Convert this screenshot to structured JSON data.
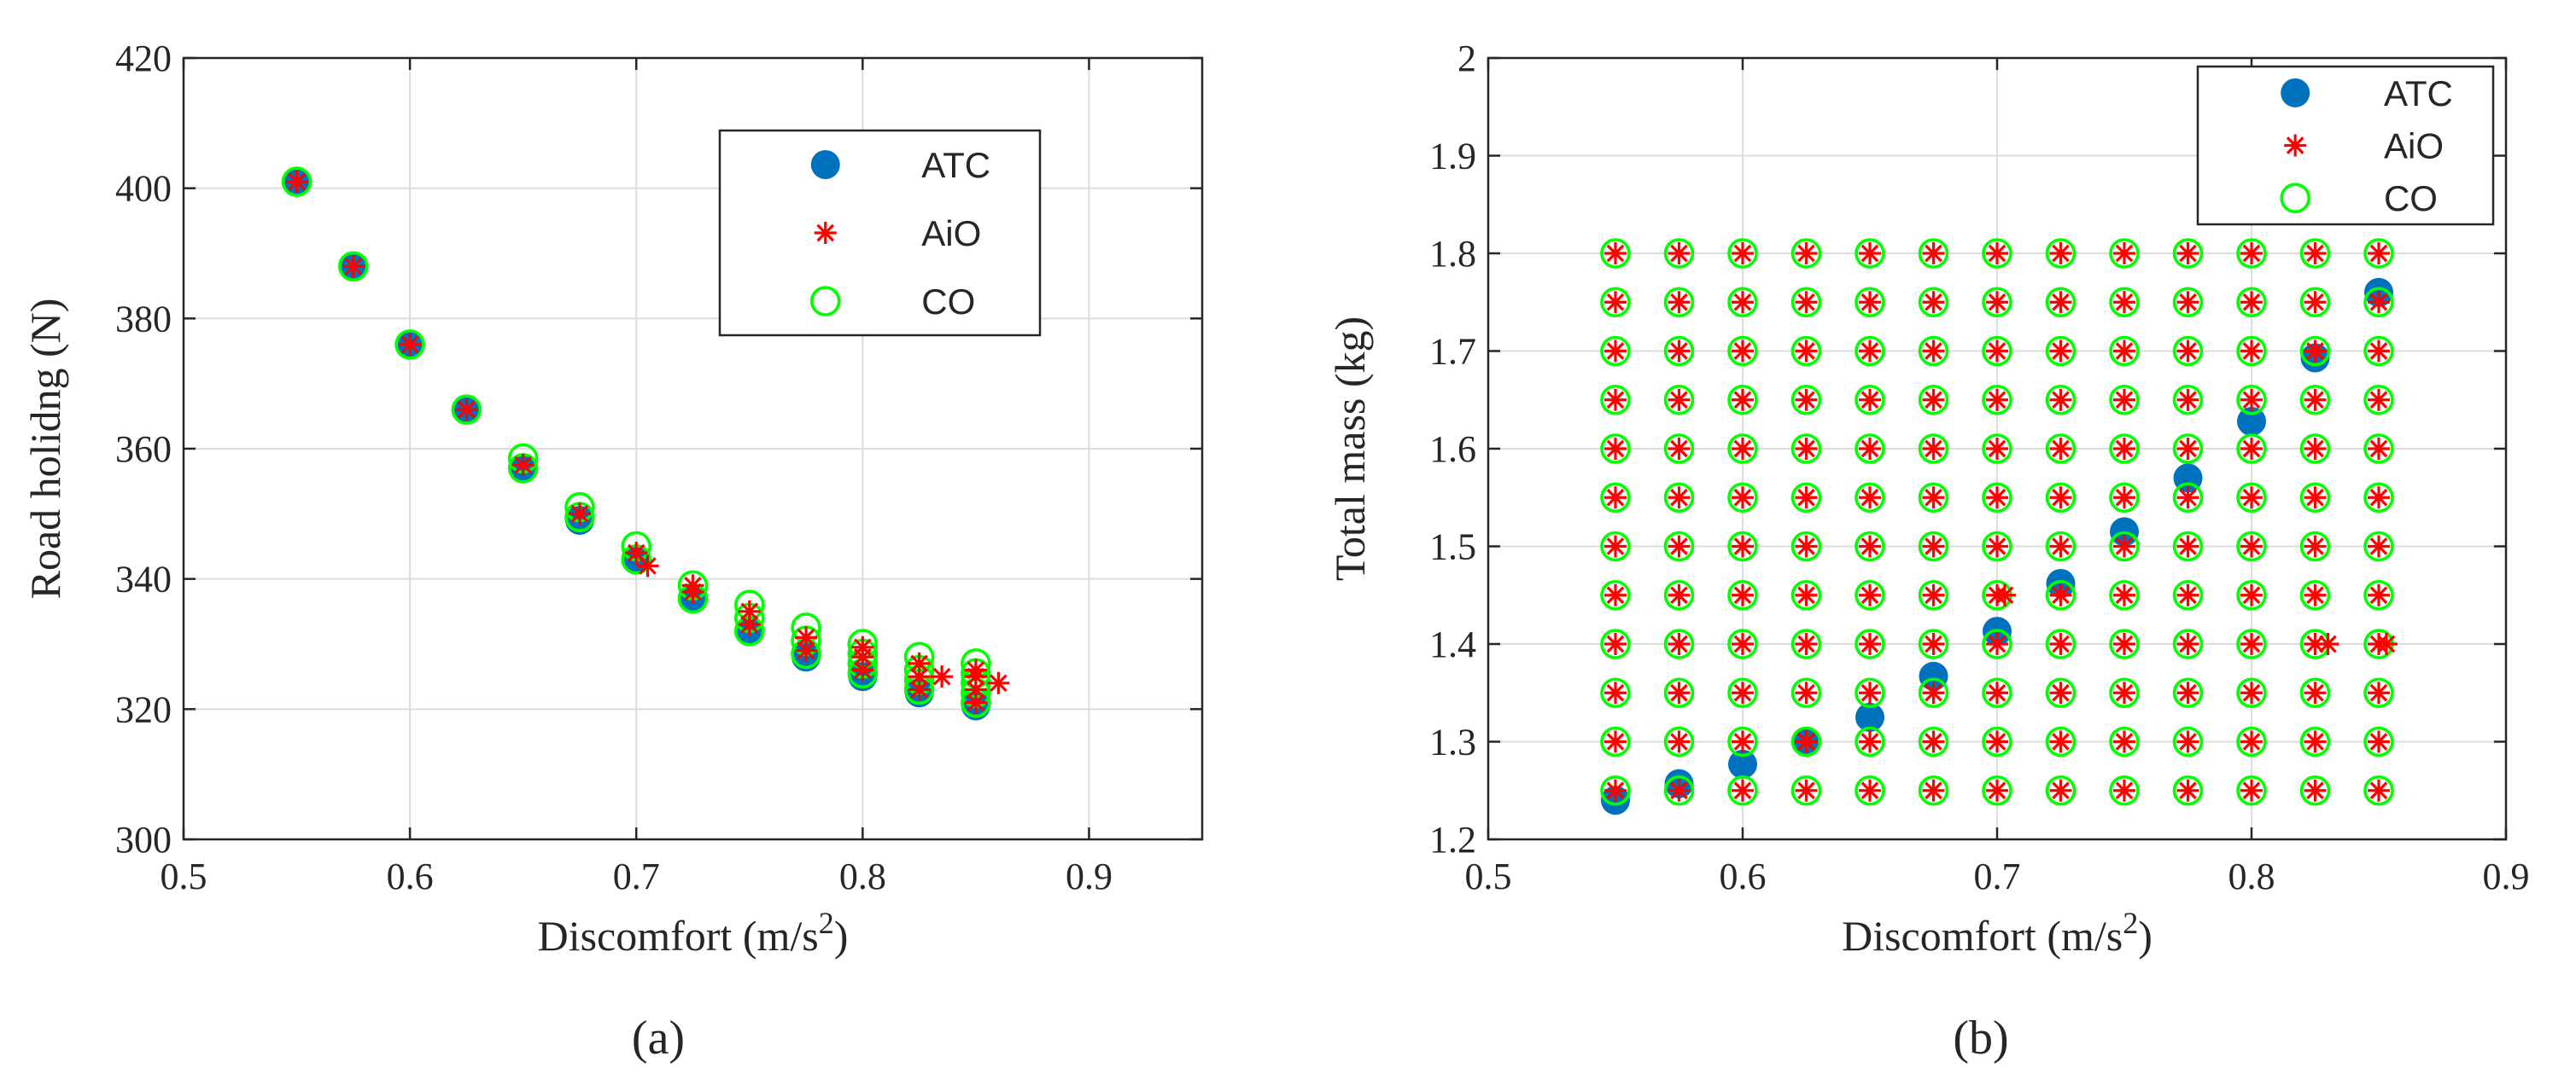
{
  "chart_data": [
    {
      "type": "scatter",
      "panel_label": "(a)",
      "xlabel": "Discomfort (m/s2)",
      "ylabel": "Road holidng (N)",
      "xlim": [
        0.5,
        0.95
      ],
      "ylim": [
        300,
        420
      ],
      "xticks": [
        0.5,
        0.6,
        0.7,
        0.8,
        0.9
      ],
      "yticks": [
        300,
        320,
        340,
        360,
        380,
        400,
        420
      ],
      "grid": true,
      "legend_position": "top-right",
      "series": [
        {
          "name": "ATC",
          "marker": "filled-circle",
          "color": "#0072BD",
          "points": [
            [
              0.55,
              401
            ],
            [
              0.575,
              388
            ],
            [
              0.6,
              376
            ],
            [
              0.625,
              366
            ],
            [
              0.65,
              357
            ],
            [
              0.675,
              349
            ],
            [
              0.7,
              343
            ],
            [
              0.725,
              337
            ],
            [
              0.75,
              332
            ],
            [
              0.775,
              328
            ],
            [
              0.8,
              325
            ],
            [
              0.825,
              322.5
            ],
            [
              0.85,
              320.5
            ]
          ]
        },
        {
          "name": "AiO",
          "marker": "asterisk",
          "color": "#FF0000",
          "points": [
            [
              0.55,
              401
            ],
            [
              0.575,
              388
            ],
            [
              0.6,
              376
            ],
            [
              0.625,
              366
            ],
            [
              0.65,
              357.5
            ],
            [
              0.675,
              350
            ],
            [
              0.7,
              344
            ],
            [
              0.705,
              342
            ],
            [
              0.725,
              338
            ],
            [
              0.725,
              339
            ],
            [
              0.75,
              333
            ],
            [
              0.75,
              335
            ],
            [
              0.775,
              329
            ],
            [
              0.775,
              331
            ],
            [
              0.8,
              326
            ],
            [
              0.8,
              328
            ],
            [
              0.8,
              329.5
            ],
            [
              0.825,
              323
            ],
            [
              0.825,
              325
            ],
            [
              0.825,
              327
            ],
            [
              0.835,
              325
            ],
            [
              0.85,
              321
            ],
            [
              0.85,
              323
            ],
            [
              0.85,
              325
            ],
            [
              0.85,
              326
            ],
            [
              0.86,
              324
            ]
          ]
        },
        {
          "name": "CO",
          "marker": "open-circle",
          "color": "#00FF00",
          "points": [
            [
              0.55,
              401
            ],
            [
              0.575,
              388
            ],
            [
              0.6,
              376
            ],
            [
              0.625,
              366
            ],
            [
              0.65,
              357
            ],
            [
              0.65,
              358.5
            ],
            [
              0.675,
              349.5
            ],
            [
              0.675,
              351
            ],
            [
              0.7,
              343
            ],
            [
              0.7,
              345
            ],
            [
              0.725,
              337
            ],
            [
              0.725,
              339
            ],
            [
              0.75,
              332
            ],
            [
              0.75,
              334
            ],
            [
              0.75,
              336
            ],
            [
              0.775,
              328.5
            ],
            [
              0.775,
              330.5
            ],
            [
              0.775,
              332.5
            ],
            [
              0.8,
              325.5
            ],
            [
              0.8,
              327
            ],
            [
              0.8,
              328.5
            ],
            [
              0.8,
              330
            ],
            [
              0.825,
              323
            ],
            [
              0.825,
              324.5
            ],
            [
              0.825,
              326
            ],
            [
              0.825,
              328
            ],
            [
              0.85,
              321
            ],
            [
              0.85,
              322.5
            ],
            [
              0.85,
              324
            ],
            [
              0.85,
              325.5
            ],
            [
              0.85,
              327
            ]
          ]
        }
      ]
    },
    {
      "type": "scatter",
      "panel_label": "(b)",
      "xlabel": "Discomfort (m/s2)",
      "ylabel": "Total mass (kg)",
      "xlim": [
        0.5,
        0.9
      ],
      "ylim": [
        1.2,
        2
      ],
      "xticks": [
        0.5,
        0.6,
        0.7,
        0.8,
        0.9
      ],
      "yticks": [
        1.2,
        1.3,
        1.4,
        1.5,
        1.6,
        1.7,
        1.8,
        1.9,
        2
      ],
      "grid": true,
      "legend_position": "top-right",
      "grid_x_values": [
        0.55,
        0.575,
        0.6,
        0.625,
        0.65,
        0.675,
        0.7,
        0.725,
        0.75,
        0.775,
        0.8,
        0.825,
        0.85
      ],
      "grid_y_values": [
        1.25,
        1.3,
        1.35,
        1.4,
        1.45,
        1.5,
        1.55,
        1.6,
        1.65,
        1.7,
        1.75,
        1.8
      ],
      "series": [
        {
          "name": "ATC",
          "marker": "filled-circle",
          "color": "#0072BD",
          "points": [
            [
              0.55,
              1.24
            ],
            [
              0.575,
              1.257
            ],
            [
              0.6,
              1.277
            ],
            [
              0.625,
              1.3
            ],
            [
              0.65,
              1.325
            ],
            [
              0.675,
              1.367
            ],
            [
              0.7,
              1.413
            ],
            [
              0.725,
              1.462
            ],
            [
              0.75,
              1.515
            ],
            [
              0.775,
              1.57
            ],
            [
              0.8,
              1.628
            ],
            [
              0.825,
              1.693
            ],
            [
              0.85,
              1.76
            ]
          ]
        },
        {
          "name": "AiO",
          "marker": "asterisk",
          "color": "#FF0000",
          "extra_points": [
            [
              0.703,
              1.45
            ],
            [
              0.83,
              1.4
            ],
            [
              0.853,
              1.4
            ]
          ]
        },
        {
          "name": "CO",
          "marker": "open-circle",
          "color": "#00FF00"
        }
      ]
    }
  ],
  "caption_a": "(a)",
  "caption_b": "(b)"
}
